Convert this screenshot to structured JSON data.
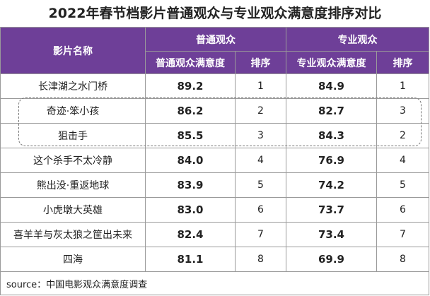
{
  "title": "2022年春节档影片普通观众与专业观众满意度排序对比",
  "headers": {
    "film_name": "影片名称",
    "general_group": "普通观众",
    "professional_group": "专业观众",
    "general_score": "普通观众满意度",
    "general_rank": "排序",
    "professional_score": "专业观众满意度",
    "professional_rank": "排序"
  },
  "rows": [
    {
      "name": "长津湖之水门桥",
      "general_score": "89.2",
      "general_rank": "1",
      "professional_score": "84.9",
      "professional_rank": "1"
    },
    {
      "name": "奇迹·笨小孩",
      "general_score": "86.2",
      "general_rank": "2",
      "professional_score": "82.7",
      "professional_rank": "3"
    },
    {
      "name": "狙击手",
      "general_score": "85.5",
      "general_rank": "3",
      "professional_score": "84.3",
      "professional_rank": "2"
    },
    {
      "name": "这个杀手不太冷静",
      "general_score": "84.0",
      "general_rank": "4",
      "professional_score": "76.9",
      "professional_rank": "4"
    },
    {
      "name": "熊出没·重返地球",
      "general_score": "83.9",
      "general_rank": "5",
      "professional_score": "74.2",
      "professional_rank": "5"
    },
    {
      "name": "小虎墩大英雄",
      "general_score": "83.0",
      "general_rank": "6",
      "professional_score": "73.7",
      "professional_rank": "6"
    },
    {
      "name": "喜羊羊与灰太狼之筐出未来",
      "general_score": "82.4",
      "general_rank": "7",
      "professional_score": "73.4",
      "professional_rank": "7"
    },
    {
      "name": "四海",
      "general_score": "81.1",
      "general_rank": "8",
      "professional_score": "69.9",
      "professional_rank": "8"
    }
  ],
  "source": "source：中国电影观众满意度调查"
}
